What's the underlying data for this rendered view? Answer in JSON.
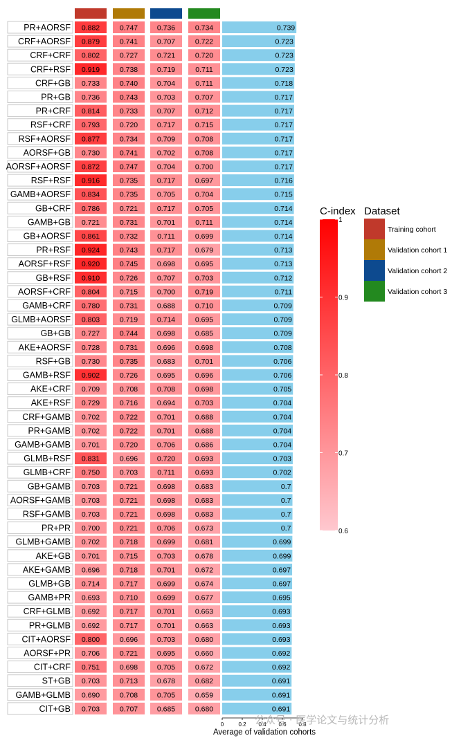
{
  "chart_data": {
    "type": "heatmap",
    "title": "",
    "models": [
      "PR+AORSF",
      "CRF+AORSF",
      "CRF+CRF",
      "CRF+RSF",
      "CRF+GB",
      "PR+GB",
      "PR+CRF",
      "RSF+CRF",
      "RSF+AORSF",
      "AORSF+GB",
      "AORSF+AORSF",
      "RSF+RSF",
      "GAMB+AORSF",
      "GB+CRF",
      "GAMB+GB",
      "GB+AORSF",
      "PR+RSF",
      "AORSF+RSF",
      "GB+RSF",
      "AORSF+CRF",
      "GAMB+CRF",
      "GLMB+AORSF",
      "GB+GB",
      "AKE+AORSF",
      "RSF+GB",
      "GAMB+RSF",
      "AKE+CRF",
      "AKE+RSF",
      "CRF+GAMB",
      "PR+GAMB",
      "GAMB+GAMB",
      "GLMB+RSF",
      "GLMB+CRF",
      "GB+GAMB",
      "AORSF+GAMB",
      "RSF+GAMB",
      "PR+PR",
      "GLMB+GAMB",
      "AKE+GB",
      "AKE+GAMB",
      "GLMB+GB",
      "GAMB+PR",
      "CRF+GLMB",
      "PR+GLMB",
      "CIT+AORSF",
      "AORSF+PR",
      "CIT+CRF",
      "ST+GB",
      "GAMB+GLMB",
      "CIT+GB"
    ],
    "series": [
      {
        "name": "Training cohort",
        "color": "#c0392b",
        "values": [
          "0.882",
          "0.879",
          "0.802",
          "0.919",
          "0.733",
          "0.736",
          "0.814",
          "0.793",
          "0.877",
          "0.730",
          "0.872",
          "0.916",
          "0.834",
          "0.786",
          "0.721",
          "0.861",
          "0.924",
          "0.920",
          "0.910",
          "0.804",
          "0.780",
          "0.803",
          "0.727",
          "0.728",
          "0.730",
          "0.902",
          "0.709",
          "0.729",
          "0.702",
          "0.702",
          "0.701",
          "0.831",
          "0.750",
          "0.703",
          "0.703",
          "0.703",
          "0.700",
          "0.702",
          "0.701",
          "0.696",
          "0.714",
          "0.693",
          "0.692",
          "0.692",
          "0.800",
          "0.706",
          "0.751",
          "0.703",
          "0.690",
          "0.703"
        ]
      },
      {
        "name": "Validation cohort 1",
        "color": "#b07a07",
        "values": [
          "0.747",
          "0.741",
          "0.727",
          "0.738",
          "0.740",
          "0.743",
          "0.733",
          "0.720",
          "0.734",
          "0.741",
          "0.747",
          "0.735",
          "0.735",
          "0.721",
          "0.731",
          "0.732",
          "0.743",
          "0.745",
          "0.726",
          "0.715",
          "0.731",
          "0.719",
          "0.744",
          "0.731",
          "0.735",
          "0.726",
          "0.708",
          "0.716",
          "0.722",
          "0.722",
          "0.720",
          "0.696",
          "0.703",
          "0.721",
          "0.721",
          "0.721",
          "0.721",
          "0.718",
          "0.715",
          "0.718",
          "0.717",
          "0.710",
          "0.717",
          "0.717",
          "0.696",
          "0.721",
          "0.698",
          "0.713",
          "0.708",
          "0.707"
        ]
      },
      {
        "name": "Validation cohort 2",
        "color": "#0d4a8f",
        "values": [
          "0.736",
          "0.707",
          "0.721",
          "0.719",
          "0.704",
          "0.703",
          "0.707",
          "0.717",
          "0.709",
          "0.702",
          "0.704",
          "0.717",
          "0.705",
          "0.717",
          "0.701",
          "0.711",
          "0.717",
          "0.698",
          "0.707",
          "0.700",
          "0.688",
          "0.714",
          "0.698",
          "0.696",
          "0.683",
          "0.695",
          "0.708",
          "0.694",
          "0.701",
          "0.701",
          "0.706",
          "0.720",
          "0.711",
          "0.698",
          "0.698",
          "0.698",
          "0.706",
          "0.699",
          "0.703",
          "0.701",
          "0.699",
          "0.699",
          "0.701",
          "0.701",
          "0.703",
          "0.695",
          "0.705",
          "0.678",
          "0.705",
          "0.685"
        ]
      },
      {
        "name": "Validation cohort 3",
        "color": "#23891f",
        "values": [
          "0.734",
          "0.722",
          "0.720",
          "0.711",
          "0.711",
          "0.707",
          "0.712",
          "0.715",
          "0.708",
          "0.708",
          "0.700",
          "0.697",
          "0.704",
          "0.705",
          "0.711",
          "0.699",
          "0.679",
          "0.695",
          "0.703",
          "0.719",
          "0.710",
          "0.695",
          "0.685",
          "0.698",
          "0.701",
          "0.696",
          "0.698",
          "0.703",
          "0.688",
          "0.688",
          "0.686",
          "0.693",
          "0.693",
          "0.683",
          "0.683",
          "0.683",
          "0.673",
          "0.681",
          "0.678",
          "0.672",
          "0.674",
          "0.677",
          "0.663",
          "0.663",
          "0.680",
          "0.660",
          "0.672",
          "0.682",
          "0.659",
          "0.680"
        ]
      }
    ],
    "average": {
      "label": "Average of validation cohorts",
      "color": "#87ceeb",
      "values": [
        "0.739",
        "0.723",
        "0.723",
        "0.723",
        "0.718",
        "0.717",
        "0.717",
        "0.717",
        "0.717",
        "0.717",
        "0.717",
        "0.716",
        "0.715",
        "0.714",
        "0.714",
        "0.714",
        "0.713",
        "0.713",
        "0.712",
        "0.711",
        "0.709",
        "0.709",
        "0.709",
        "0.708",
        "0.706",
        "0.706",
        "0.705",
        "0.704",
        "0.704",
        "0.704",
        "0.704",
        "0.703",
        "0.702",
        "0.7",
        "0.7",
        "0.7",
        "0.7",
        "0.699",
        "0.699",
        "0.697",
        "0.697",
        "0.695",
        "0.693",
        "0.693",
        "0.693",
        "0.692",
        "0.692",
        "0.691",
        "0.691",
        "0.691"
      ],
      "axis_ticks": [
        "0",
        "0.2",
        "0.4",
        "0.6",
        "0.8"
      ],
      "xlim": [
        0,
        0.8
      ]
    },
    "colorbar": {
      "title": "C-index",
      "range": [
        0.6,
        1
      ],
      "ticks": [
        "0.6",
        "0.7",
        "0.8",
        "0.9",
        "1"
      ],
      "low_color": "#ffc8cf",
      "high_color": "#ff0000"
    },
    "legend": {
      "title": "Dataset",
      "position": "right",
      "entries": [
        "Training cohort",
        "Validation cohort 1",
        "Validation cohort 2",
        "Validation cohort 3"
      ]
    }
  },
  "watermark": "公众号 · 医学论文与统计分析"
}
